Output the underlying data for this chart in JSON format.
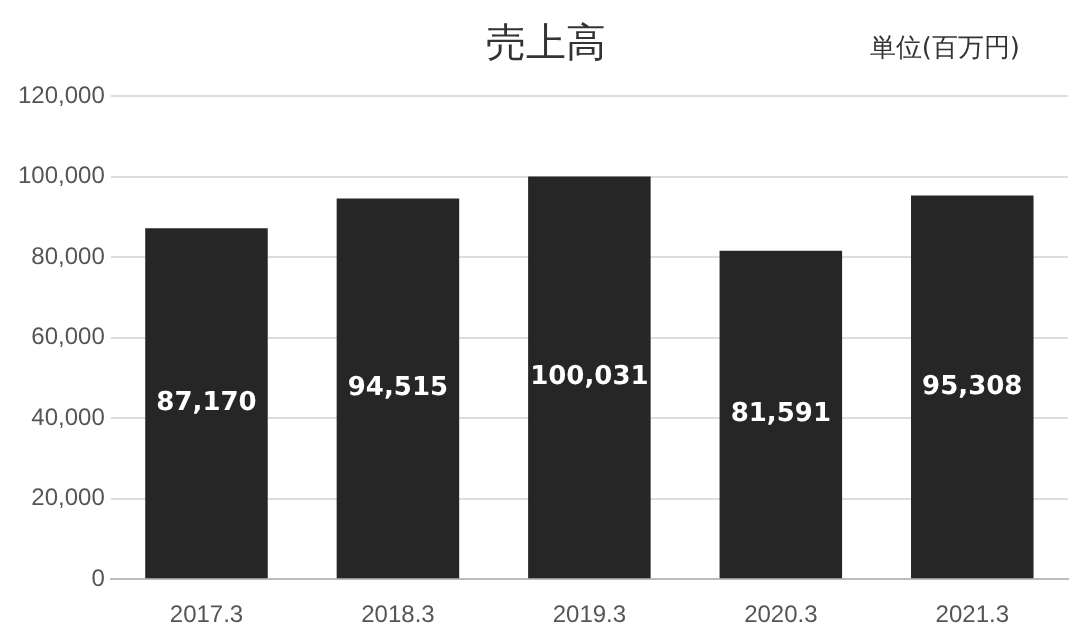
{
  "chart_data": {
    "type": "bar",
    "title": "売上高",
    "annotations": [
      "単位(百万円)"
    ],
    "categories": [
      "2017.3",
      "2018.3",
      "2019.3",
      "2020.3",
      "2021.3"
    ],
    "values": [
      87170,
      94515,
      100031,
      81591,
      95308
    ],
    "color": "#262626",
    "ylim": [
      0,
      120000
    ],
    "yticks": [
      {
        "value": 0,
        "label": "0"
      },
      {
        "value": 20000,
        "label": "20,000"
      },
      {
        "value": 40000,
        "label": "40,000"
      },
      {
        "value": 60000,
        "label": "60,000"
      },
      {
        "value": 80000,
        "label": "80,000"
      },
      {
        "value": 100000,
        "label": "100,000"
      },
      {
        "value": 120000,
        "label": "120,000"
      }
    ],
    "value_labels": [
      "87,170",
      "94,515",
      "100,031",
      "81,591",
      "95,308"
    ],
    "grid": "y"
  }
}
